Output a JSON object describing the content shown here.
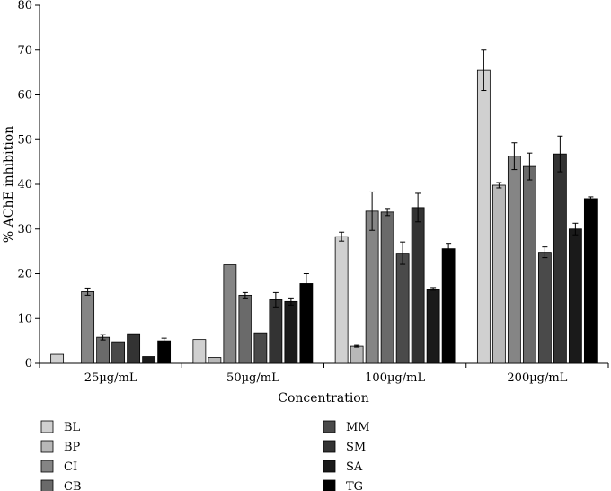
{
  "chart_data": {
    "type": "bar",
    "title": "",
    "xlabel": "Concentration",
    "ylabel": "% AChE inhibition",
    "ylim": [
      0,
      80
    ],
    "yticks": [
      0,
      10,
      20,
      30,
      40,
      50,
      60,
      70,
      80
    ],
    "grid": false,
    "categories": [
      "25µg/mL",
      "50µg/mL",
      "100µg/mL",
      "200µg/mL"
    ],
    "series": [
      {
        "name": "BL",
        "color": "#d0d0d0",
        "values": [
          2.0,
          5.3,
          28.3,
          65.5
        ],
        "errors": [
          0.0,
          0.0,
          1.0,
          4.5
        ]
      },
      {
        "name": "BP",
        "color": "#b8b8b8",
        "values": [
          0.0,
          1.3,
          3.8,
          39.8
        ],
        "errors": [
          0.0,
          0.0,
          0.2,
          0.6
        ]
      },
      {
        "name": "CI",
        "color": "#858585",
        "values": [
          16.0,
          22.0,
          34.0,
          46.3
        ],
        "errors": [
          0.8,
          0.0,
          4.3,
          3.0
        ]
      },
      {
        "name": "CB",
        "color": "#6a6a6a",
        "values": [
          5.8,
          15.2,
          33.8,
          44.0
        ],
        "errors": [
          0.6,
          0.6,
          0.8,
          3.0
        ]
      },
      {
        "name": "MM",
        "color": "#4a4a4a",
        "values": [
          4.8,
          6.8,
          24.6,
          24.8
        ],
        "errors": [
          0.0,
          0.0,
          2.5,
          1.2
        ]
      },
      {
        "name": "SM",
        "color": "#333333",
        "values": [
          6.6,
          14.2,
          34.8,
          46.8
        ],
        "errors": [
          0.0,
          1.6,
          3.2,
          4.0
        ]
      },
      {
        "name": "SA",
        "color": "#1a1a1a",
        "values": [
          1.5,
          13.8,
          16.6,
          30.0
        ],
        "errors": [
          0.0,
          0.8,
          0.3,
          1.3
        ]
      },
      {
        "name": "TG",
        "color": "#000000",
        "values": [
          5.0,
          17.8,
          25.6,
          36.8
        ],
        "errors": [
          0.6,
          2.2,
          1.2,
          0.4
        ]
      }
    ]
  }
}
